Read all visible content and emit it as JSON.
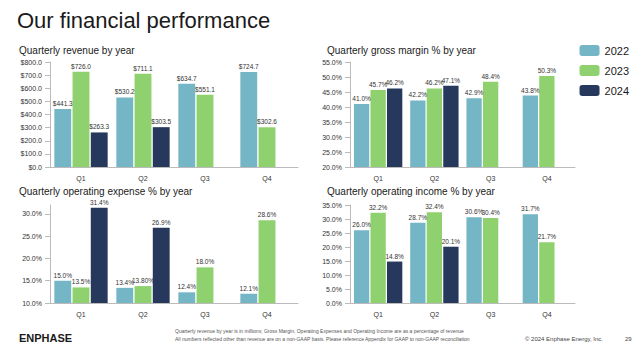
{
  "title": "Our financial performance",
  "legend": "right",
  "footnotes": [
    "Quarterly revenue by year is in millions; Gross Margin, Operating Expenses and Operating Income are as a percentage of revenue",
    "All numbers reflected other than revenue are on a non-GAAP basis. Please reference Appendix for GAAP to non-GAAP reconciliation"
  ],
  "logo": "ENPHASE",
  "copyright": "© 2024 Enphase Energy, Inc.",
  "page": "29",
  "chart_data": [
    {
      "type": "bar",
      "title": "Quarterly revenue by year",
      "categories": [
        "Q1",
        "Q2",
        "Q3",
        "Q4"
      ],
      "ylim": [
        0,
        800
      ],
      "yticks": [
        {
          "value": 0,
          "label": "$0.0"
        },
        {
          "value": 100,
          "label": "$100.0"
        },
        {
          "value": 200,
          "label": "$200.0"
        },
        {
          "value": 300,
          "label": "$300.0"
        },
        {
          "value": 400,
          "label": "$400.0"
        },
        {
          "value": 500,
          "label": "$500.0"
        },
        {
          "value": 600,
          "label": "$600.0"
        },
        {
          "value": 700,
          "label": "$700.0"
        },
        {
          "value": 800,
          "label": "$800.0"
        }
      ],
      "grid": false,
      "data_labels": true,
      "series": [
        {
          "name": "2022",
          "color": "#74b6c6",
          "values": [
            441.3,
            530.2,
            634.7,
            724.7
          ],
          "value_labels": [
            "$441.3",
            "$530.2",
            "$634.7",
            "$724.7"
          ]
        },
        {
          "name": "2023",
          "color": "#8fd16e",
          "values": [
            726.0,
            711.1,
            551.1,
            302.6
          ],
          "value_labels": [
            "$726.0",
            "$711.1",
            "$551.1",
            "$302.6"
          ]
        },
        {
          "name": "2024",
          "color": "#26395c",
          "values": [
            263.3,
            303.5,
            null,
            null
          ],
          "value_labels": [
            "$263.3",
            "$303.5",
            null,
            null
          ]
        }
      ]
    },
    {
      "type": "bar",
      "title": "Quarterly gross margin % by year",
      "categories": [
        "Q1",
        "Q2",
        "Q3",
        "Q4"
      ],
      "ylim": [
        20,
        55
      ],
      "yticks": [
        {
          "value": 20,
          "label": "20.0%"
        },
        {
          "value": 25,
          "label": "25.0%"
        },
        {
          "value": 30,
          "label": "30.0%"
        },
        {
          "value": 35,
          "label": "35.0%"
        },
        {
          "value": 40,
          "label": "40.0%"
        },
        {
          "value": 45,
          "label": "45.0%"
        },
        {
          "value": 50,
          "label": "50.0%"
        },
        {
          "value": 55,
          "label": "55.0%"
        }
      ],
      "grid": false,
      "data_labels": true,
      "series": [
        {
          "name": "2022",
          "color": "#74b6c6",
          "values": [
            41.0,
            42.2,
            42.9,
            43.8
          ],
          "value_labels": [
            "41.0%",
            "42.2%",
            "42.9%",
            "43.8%"
          ]
        },
        {
          "name": "2023",
          "color": "#8fd16e",
          "values": [
            45.7,
            46.2,
            48.4,
            50.3
          ],
          "value_labels": [
            "45.7%",
            "46.2%",
            "48.4%",
            "50.3%"
          ]
        },
        {
          "name": "2024",
          "color": "#26395c",
          "values": [
            46.2,
            47.1,
            null,
            null
          ],
          "value_labels": [
            "46.2%",
            "47.1%",
            null,
            null
          ]
        }
      ]
    },
    {
      "type": "bar",
      "title": "Quarterly operating expense % by year",
      "categories": [
        "Q1",
        "Q2",
        "Q3",
        "Q4"
      ],
      "ylim": [
        10,
        32
      ],
      "yticks": [
        {
          "value": 10,
          "label": "10.0%"
        },
        {
          "value": 15,
          "label": "15.0%"
        },
        {
          "value": 20,
          "label": "20.0%"
        },
        {
          "value": 25,
          "label": "25.0%"
        },
        {
          "value": 30,
          "label": "30.0%"
        }
      ],
      "grid": false,
      "data_labels": true,
      "series": [
        {
          "name": "2022",
          "color": "#74b6c6",
          "values": [
            15.0,
            13.4,
            12.4,
            12.1
          ],
          "value_labels": [
            "15.0%",
            "13.4%",
            "12.4%",
            "12.1%"
          ]
        },
        {
          "name": "2023",
          "color": "#8fd16e",
          "values": [
            13.5,
            13.8,
            18.0,
            28.6
          ],
          "value_labels": [
            "13.5%",
            "13.80%",
            "18.0%",
            "28.6%"
          ]
        },
        {
          "name": "2024",
          "color": "#26395c",
          "values": [
            31.4,
            26.9,
            null,
            null
          ],
          "value_labels": [
            "31.4%",
            "26.9%",
            null,
            null
          ]
        }
      ]
    },
    {
      "type": "bar",
      "title": "Quarterly operating income % by year",
      "categories": [
        "Q1",
        "Q2",
        "Q3",
        "Q4"
      ],
      "ylim": [
        0,
        35
      ],
      "yticks": [
        {
          "value": 0,
          "label": "0.0%"
        },
        {
          "value": 5,
          "label": "5.0%"
        },
        {
          "value": 10,
          "label": "10.0%"
        },
        {
          "value": 15,
          "label": "15.0%"
        },
        {
          "value": 20,
          "label": "20.0%"
        },
        {
          "value": 25,
          "label": "25.0%"
        },
        {
          "value": 30,
          "label": "30.0%"
        },
        {
          "value": 35,
          "label": "35.0%"
        }
      ],
      "grid": false,
      "data_labels": true,
      "series": [
        {
          "name": "2022",
          "color": "#74b6c6",
          "values": [
            26.0,
            28.7,
            30.6,
            31.7
          ],
          "value_labels": [
            "26.0%",
            "28.7%",
            "30.6%",
            "31.7%"
          ]
        },
        {
          "name": "2023",
          "color": "#8fd16e",
          "values": [
            32.2,
            32.4,
            30.4,
            21.7
          ],
          "value_labels": [
            "32.2%",
            "32.4%",
            "30.4%",
            "21.7%"
          ]
        },
        {
          "name": "2024",
          "color": "#26395c",
          "values": [
            14.8,
            20.1,
            null,
            null
          ],
          "value_labels": [
            "14.8%",
            "20.1%",
            null,
            null
          ]
        }
      ]
    }
  ]
}
